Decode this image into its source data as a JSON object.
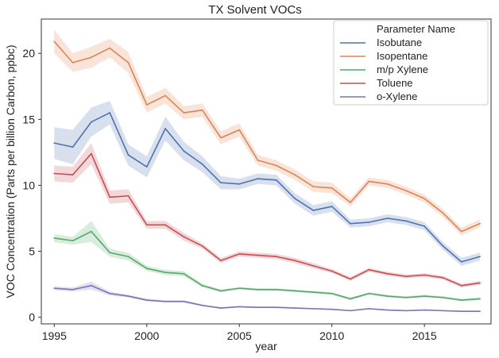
{
  "chart_data": {
    "type": "line",
    "title": "TX Solvent VOCs",
    "xlabel": "year",
    "ylabel": "VOC Concentration (Parts per billion Carbon, ppbc)",
    "xlim": [
      1994.3,
      2018.6
    ],
    "ylim": [
      -0.5,
      22.6
    ],
    "xticks": [
      1995,
      2000,
      2005,
      2010,
      2015
    ],
    "yticks": [
      0,
      5,
      10,
      15,
      20
    ],
    "grid": false,
    "legend": {
      "title": "Parameter Name",
      "placement": "top-right"
    },
    "x": [
      1995,
      1996,
      1997,
      1998,
      1999,
      2000,
      2001,
      2002,
      2003,
      2004,
      2005,
      2006,
      2007,
      2008,
      2009,
      2010,
      2011,
      2012,
      2013,
      2014,
      2015,
      2016,
      2017,
      2018
    ],
    "series": [
      {
        "name": "Isobutane",
        "color": "#4c72b0",
        "values": [
          13.2,
          12.9,
          14.8,
          15.5,
          12.3,
          11.4,
          14.3,
          12.6,
          11.6,
          10.2,
          10.1,
          10.5,
          10.4,
          9.0,
          8.1,
          8.4,
          7.1,
          7.2,
          7.5,
          7.3,
          6.9,
          5.4,
          4.2,
          4.6
        ],
        "band": [
          1.2,
          1.3,
          1.1,
          0.9,
          0.8,
          0.8,
          0.9,
          0.7,
          0.6,
          0.5,
          0.4,
          0.4,
          0.4,
          0.4,
          0.4,
          0.4,
          0.3,
          0.3,
          0.3,
          0.3,
          0.3,
          0.3,
          0.3,
          0.3
        ]
      },
      {
        "name": "Isopentane",
        "color": "#dd8452",
        "values": [
          20.9,
          19.3,
          19.7,
          20.4,
          19.3,
          16.1,
          16.8,
          15.5,
          15.7,
          13.6,
          14.2,
          11.9,
          11.5,
          10.8,
          9.9,
          9.8,
          8.7,
          10.3,
          10.1,
          9.6,
          9.0,
          7.9,
          6.5,
          7.1
        ],
        "band": [
          0.9,
          0.7,
          0.8,
          0.7,
          0.8,
          0.6,
          0.6,
          0.5,
          0.5,
          0.5,
          0.5,
          0.4,
          0.4,
          0.4,
          0.4,
          0.4,
          0.3,
          0.3,
          0.3,
          0.3,
          0.3,
          0.3,
          0.3,
          0.3
        ]
      },
      {
        "name": "m/p Xylene",
        "color": "#55a868",
        "values": [
          6.0,
          5.8,
          6.5,
          4.9,
          4.6,
          3.7,
          3.4,
          3.3,
          2.4,
          2.0,
          2.2,
          2.1,
          2.1,
          2.0,
          1.9,
          1.8,
          1.4,
          1.8,
          1.6,
          1.5,
          1.6,
          1.5,
          1.3,
          1.4
        ],
        "band": [
          0.3,
          0.3,
          0.8,
          0.3,
          0.3,
          0.2,
          0.2,
          0.2,
          0.15,
          0.1,
          0.1,
          0.1,
          0.1,
          0.1,
          0.1,
          0.1,
          0.1,
          0.1,
          0.1,
          0.1,
          0.1,
          0.1,
          0.1,
          0.1
        ]
      },
      {
        "name": "Toluene",
        "color": "#c44e52",
        "values": [
          10.9,
          10.8,
          12.4,
          9.1,
          9.2,
          7.0,
          7.0,
          6.1,
          5.4,
          4.3,
          4.8,
          4.7,
          4.6,
          4.3,
          3.9,
          3.5,
          2.9,
          3.6,
          3.3,
          3.1,
          3.2,
          3.0,
          2.4,
          2.6
        ],
        "band": [
          0.6,
          0.6,
          0.8,
          0.5,
          0.5,
          0.3,
          0.3,
          0.3,
          0.2,
          0.2,
          0.2,
          0.2,
          0.2,
          0.2,
          0.2,
          0.15,
          0.15,
          0.15,
          0.15,
          0.15,
          0.15,
          0.15,
          0.15,
          0.15
        ]
      },
      {
        "name": "o-Xylene",
        "color": "#8172b3",
        "values": [
          2.2,
          2.1,
          2.4,
          1.8,
          1.6,
          1.3,
          1.2,
          1.2,
          0.9,
          0.7,
          0.8,
          0.75,
          0.75,
          0.7,
          0.65,
          0.6,
          0.5,
          0.65,
          0.55,
          0.5,
          0.55,
          0.5,
          0.45,
          0.45
        ],
        "band": [
          0.15,
          0.15,
          0.3,
          0.15,
          0.1,
          0.1,
          0.1,
          0.1,
          0.08,
          0.06,
          0.06,
          0.06,
          0.06,
          0.05,
          0.05,
          0.05,
          0.05,
          0.05,
          0.05,
          0.05,
          0.05,
          0.05,
          0.05,
          0.05
        ]
      }
    ]
  }
}
